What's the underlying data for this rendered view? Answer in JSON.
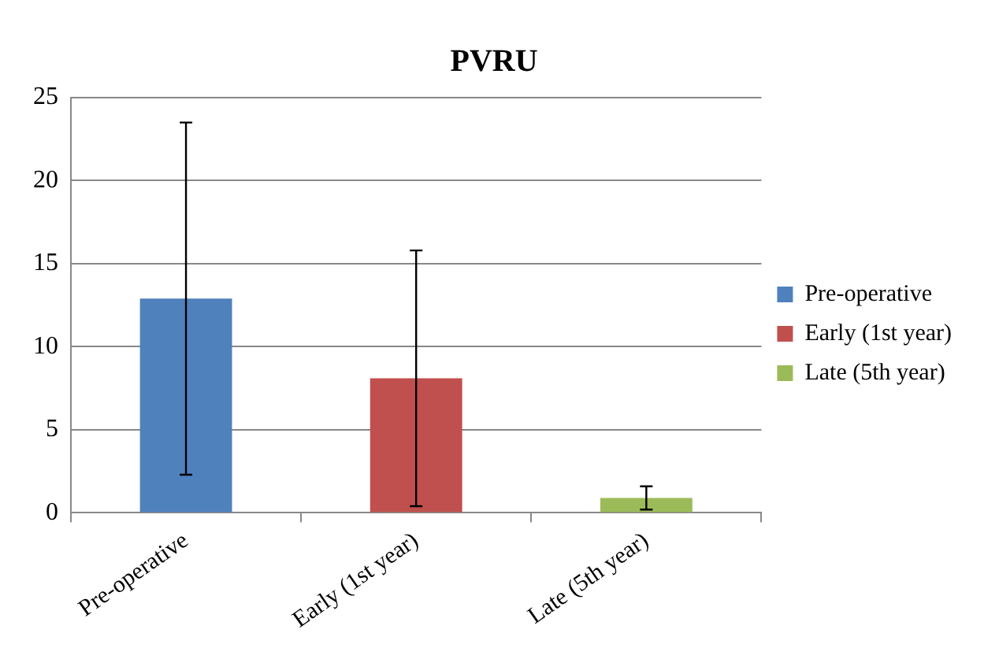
{
  "chart_data": {
    "type": "bar",
    "title": "PVRU",
    "categories": [
      "Pre-operative",
      "Early (1st year)",
      "Late (5th year)"
    ],
    "series": [
      {
        "name": "Pre-operative",
        "color": "#4f81bd",
        "values": [
          12.9,
          null,
          null
        ],
        "errors": [
          10.6,
          null,
          null
        ]
      },
      {
        "name": "Early (1st year)",
        "color": "#c0504d",
        "values": [
          null,
          8.1,
          null
        ],
        "errors": [
          null,
          7.7,
          null
        ]
      },
      {
        "name": "Late (5th year)",
        "color": "#9bbb59",
        "values": [
          null,
          null,
          0.9
        ],
        "errors": [
          null,
          null,
          0.7
        ]
      }
    ],
    "ylim": [
      0,
      25
    ],
    "yticks": [
      0,
      5,
      10,
      15,
      20,
      25
    ],
    "grid": "y",
    "legend": "right"
  }
}
